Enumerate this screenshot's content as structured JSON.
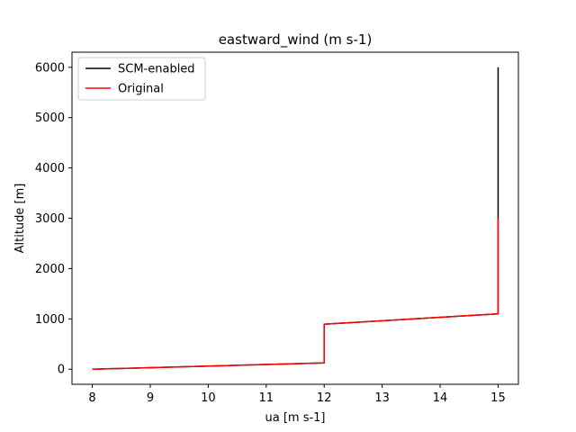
{
  "chart_data": {
    "type": "line",
    "title": "eastward_wind (m s-1)",
    "xlabel": "ua [m s-1]",
    "ylabel": "Altitude [m]",
    "xlim": [
      7.65,
      15.35
    ],
    "ylim": [
      -300,
      6300
    ],
    "xticks": [
      8,
      9,
      10,
      11,
      12,
      13,
      14,
      15
    ],
    "yticks": [
      0,
      1000,
      2000,
      3000,
      4000,
      5000,
      6000
    ],
    "grid": false,
    "legend_position": "top-left",
    "series": [
      {
        "name": "SCM-enabled",
        "color": "#000000",
        "points": [
          [
            8,
            0
          ],
          [
            12,
            125
          ],
          [
            12,
            895
          ],
          [
            15,
            1100
          ],
          [
            15,
            6000
          ]
        ]
      },
      {
        "name": "Original",
        "color": "#ff0000",
        "points": [
          [
            8,
            0
          ],
          [
            12,
            125
          ],
          [
            12,
            895
          ],
          [
            15,
            1100
          ],
          [
            15,
            3000
          ]
        ]
      }
    ]
  }
}
